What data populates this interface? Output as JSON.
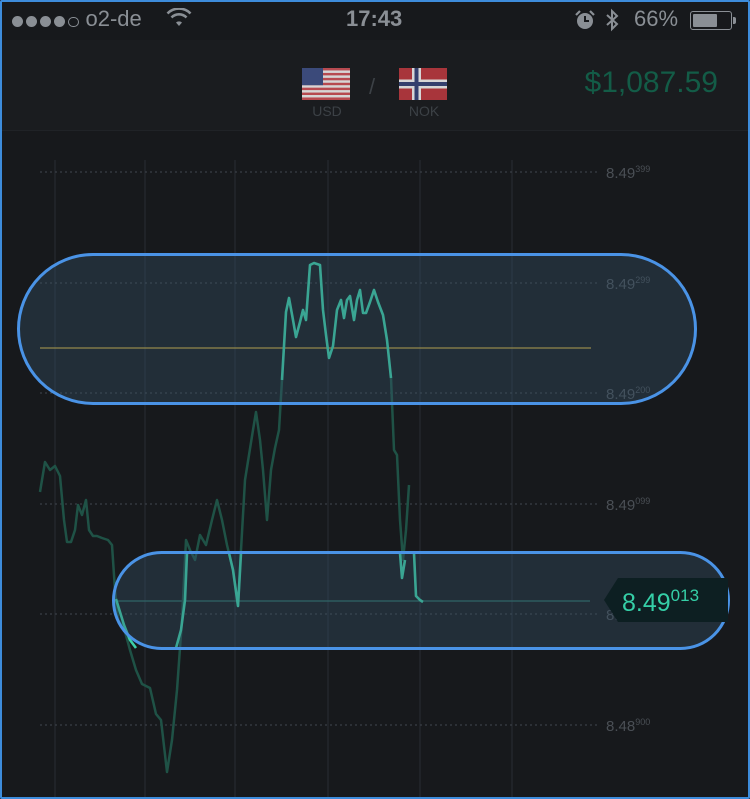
{
  "status_bar": {
    "carrier": "o2-de",
    "time": "17:43",
    "battery_percent": "66%",
    "battery_level": 0.66,
    "signal_bars_filled": 4,
    "signal_bars_total": 5
  },
  "header": {
    "base_currency": "USD",
    "quote_currency": "NOK",
    "separator": "/",
    "balance": "$1,087.59"
  },
  "price_tag": {
    "main": "8.49",
    "pips": "013"
  },
  "axis_labels": [
    {
      "main": "8.49",
      "sup": "399"
    },
    {
      "main": "8.49",
      "sup": "299"
    },
    {
      "main": "8.49",
      "sup": "200"
    },
    {
      "main": "8.49",
      "sup": "099"
    },
    {
      "main": "8.49",
      "sup": ""
    },
    {
      "main": "8.48",
      "sup": "900"
    }
  ],
  "colors": {
    "line_active": "#3ccfa8",
    "line_faded": "#1f5246",
    "target_line": "#c7a53a",
    "highlight_border": "#4a93e6",
    "balance": "#135c47"
  },
  "icons": {
    "wifi": "wifi-icon",
    "alarm": "alarm-icon",
    "bluetooth": "bluetooth-icon",
    "battery": "battery-icon",
    "usd_flag": "us-flag-icon",
    "nok_flag": "norway-flag-icon"
  }
}
